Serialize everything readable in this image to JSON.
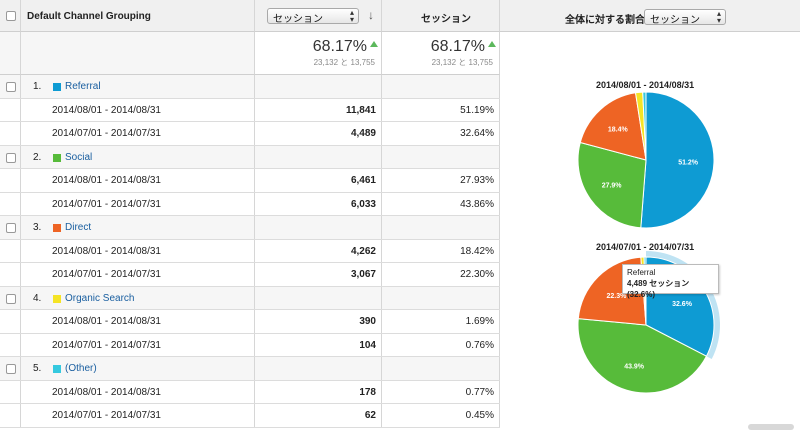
{
  "header": {
    "dimension_label": "Default Channel Grouping",
    "metric1_select": "セッション",
    "metric2_title": "セッション",
    "pie_label": "全体に対する割合:",
    "pie_select": "セッション"
  },
  "summary": {
    "metric1": {
      "pct": "68.17%",
      "detail": "23,132 と 13,755"
    },
    "metric2": {
      "pct": "68.17%",
      "detail": "23,132 と 13,755"
    }
  },
  "groups": [
    {
      "index": "1.",
      "label": "Referral",
      "color": "#0e9bd3",
      "rows": [
        {
          "date": "2014/08/01 - 2014/08/31",
          "value": "11,841",
          "share": "51.19%"
        },
        {
          "date": "2014/07/01 - 2014/07/31",
          "value": "4,489",
          "share": "32.64%"
        }
      ]
    },
    {
      "index": "2.",
      "label": "Social",
      "color": "#57bb3a",
      "rows": [
        {
          "date": "2014/08/01 - 2014/08/31",
          "value": "6,461",
          "share": "27.93%"
        },
        {
          "date": "2014/07/01 - 2014/07/31",
          "value": "6,033",
          "share": "43.86%"
        }
      ]
    },
    {
      "index": "3.",
      "label": "Direct",
      "color": "#ee6424",
      "rows": [
        {
          "date": "2014/08/01 - 2014/08/31",
          "value": "4,262",
          "share": "18.42%"
        },
        {
          "date": "2014/07/01 - 2014/07/31",
          "value": "3,067",
          "share": "22.30%"
        }
      ]
    },
    {
      "index": "4.",
      "label": "Organic Search",
      "color": "#f5e425",
      "rows": [
        {
          "date": "2014/08/01 - 2014/08/31",
          "value": "390",
          "share": "1.69%"
        },
        {
          "date": "2014/07/01 - 2014/07/31",
          "value": "104",
          "share": "0.76%"
        }
      ]
    },
    {
      "index": "5.",
      "label": "(Other)",
      "color": "#35c9df",
      "rows": [
        {
          "date": "2014/08/01 - 2014/08/31",
          "value": "178",
          "share": "0.77%"
        },
        {
          "date": "2014/07/01 - 2014/07/31",
          "value": "62",
          "share": "0.45%"
        }
      ]
    }
  ],
  "chart_data": [
    {
      "type": "pie",
      "title": "2014/08/01 - 2014/08/31",
      "categories": [
        "Referral",
        "Social",
        "Direct",
        "Organic Search",
        "(Other)"
      ],
      "values": [
        51.2,
        27.9,
        18.4,
        1.69,
        0.77
      ],
      "slice_labels": [
        "51.2%",
        "27.9%",
        "18.4%",
        "",
        ""
      ]
    },
    {
      "type": "pie",
      "title": "2014/07/01 - 2014/07/31",
      "categories": [
        "Referral",
        "Social",
        "Direct",
        "Organic Search",
        "(Other)"
      ],
      "values": [
        32.6,
        43.9,
        22.3,
        0.76,
        0.45
      ],
      "slice_labels": [
        "32.6%",
        "43.9%",
        "22.3%",
        "",
        ""
      ],
      "highlighted": "Referral"
    }
  ],
  "tooltip": {
    "title": "Referral",
    "text": "4,489 セッション (32.6%)"
  }
}
